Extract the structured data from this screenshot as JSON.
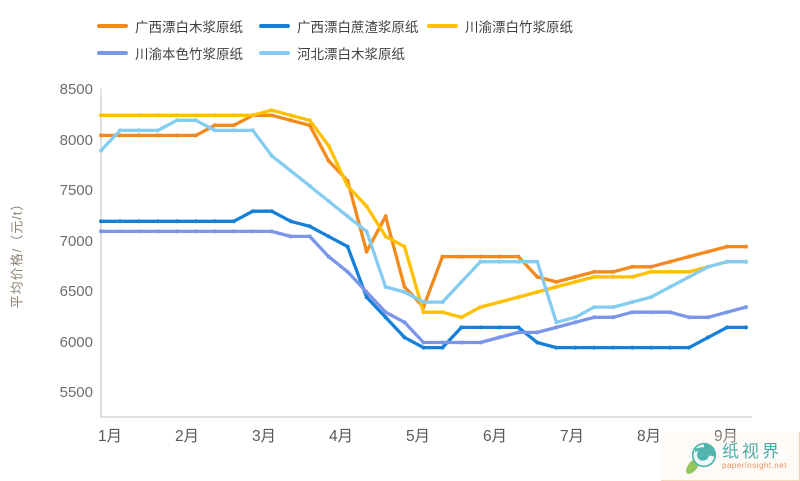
{
  "chart_data": {
    "type": "line",
    "title": "",
    "ylabel": "平均价格/（元/t）",
    "xlabel": "",
    "ylim": [
      5500,
      8500
    ],
    "y_ticks": [
      8500,
      8000,
      7500,
      7000,
      6500,
      6000,
      5500
    ],
    "x_months": [
      "1月",
      "2月",
      "3月",
      "4月",
      "5月",
      "6月",
      "7月",
      "8月",
      "9月"
    ],
    "points_per_month": 4,
    "grid": "off",
    "legend_position": "top-left",
    "series": [
      {
        "name": "广西漂白木浆原纸",
        "color": "#F28A1E",
        "values": [
          8050,
          8050,
          8050,
          8050,
          8050,
          8050,
          8150,
          8150,
          8250,
          8250,
          8200,
          8150,
          7800,
          7600,
          6900,
          7250,
          6550,
          6350,
          6850,
          6850,
          6850,
          6850,
          6850,
          6650,
          6600,
          6650,
          6700,
          6700,
          6750,
          6750,
          6800,
          6850,
          6900,
          6950,
          6950
        ]
      },
      {
        "name": "广西漂白蔗渣浆原纸",
        "color": "#1680D9",
        "values": [
          7200,
          7200,
          7200,
          7200,
          7200,
          7200,
          7200,
          7200,
          7300,
          7300,
          7200,
          7150,
          7050,
          6950,
          6450,
          6250,
          6050,
          5950,
          5950,
          6150,
          6150,
          6150,
          6150,
          6000,
          5950,
          5950,
          5950,
          5950,
          5950,
          5950,
          5950,
          5950,
          6050,
          6150,
          6150
        ]
      },
      {
        "name": "川渝漂白竹浆原纸",
        "color": "#FFC000",
        "values": [
          8250,
          8250,
          8250,
          8250,
          8250,
          8250,
          8250,
          8250,
          8250,
          8300,
          8250,
          8200,
          7950,
          7550,
          7350,
          7050,
          6950,
          6300,
          6300,
          6250,
          6350,
          6400,
          6450,
          6500,
          6550,
          6600,
          6650,
          6650,
          6650,
          6700,
          6700,
          6700,
          6750,
          6800,
          6800
        ]
      },
      {
        "name": "川渝本色竹浆原纸",
        "color": "#7B96E8",
        "values": [
          7100,
          7100,
          7100,
          7100,
          7100,
          7100,
          7100,
          7100,
          7100,
          7100,
          7050,
          7050,
          6850,
          6700,
          6500,
          6300,
          6200,
          6000,
          6000,
          6000,
          6000,
          6050,
          6100,
          6100,
          6150,
          6200,
          6250,
          6250,
          6300,
          6300,
          6300,
          6250,
          6250,
          6300,
          6350
        ]
      },
      {
        "name": "河北漂白木浆原纸",
        "color": "#85CCF2",
        "values": [
          7900,
          8100,
          8100,
          8100,
          8200,
          8200,
          8100,
          8100,
          8100,
          7850,
          7700,
          7550,
          7400,
          7250,
          7100,
          6550,
          6500,
          6400,
          6400,
          6600,
          6800,
          6800,
          6800,
          6800,
          6200,
          6250,
          6350,
          6350,
          6400,
          6450,
          6550,
          6650,
          6750,
          6800,
          6800
        ]
      }
    ]
  },
  "watermark": {
    "brand": "纸视界",
    "url": "paperinsight.net"
  }
}
